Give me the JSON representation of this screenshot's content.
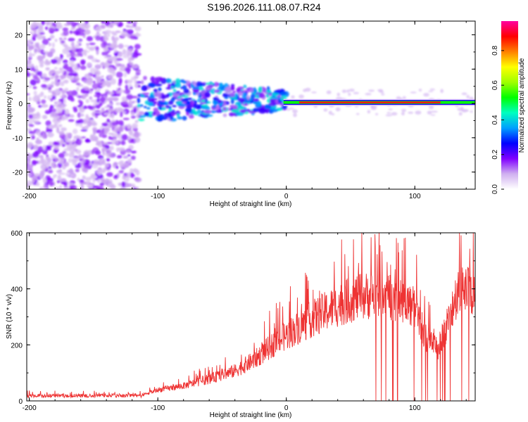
{
  "title": "S196.2026.111.08.07.R24",
  "chart_data": [
    {
      "type": "heatmap",
      "name": "spectrogram",
      "xlabel": "Height of straight line (km)",
      "ylabel": "Frequency (Hz)",
      "xlim": [
        -202,
        147
      ],
      "ylim": [
        -25,
        24
      ],
      "x_ticks": [
        -200,
        -100,
        0,
        100
      ],
      "x_tick_labels": [
        "-200",
        "-100",
        "0",
        "100"
      ],
      "y_ticks": [
        -20,
        -10,
        0,
        10,
        20
      ],
      "y_tick_labels": [
        "-20",
        "-10",
        "0",
        "10",
        "20"
      ],
      "colorbar": {
        "label": "Normalized spectral amplitude",
        "range": [
          0.0,
          0.97
        ],
        "ticks": [
          0.0,
          0.2,
          0.4,
          0.6,
          0.8
        ],
        "tick_labels": [
          "0.0",
          "0.2",
          "0.4",
          "0.6",
          "0.8"
        ],
        "colors": [
          "#ffffff",
          "#d0b0f0",
          "#8000ff",
          "#0000ff",
          "#00a0ff",
          "#00ffc0",
          "#00ff00",
          "#a0ff00",
          "#ffff00",
          "#ff8000",
          "#ff0000",
          "#ff00a0"
        ]
      },
      "regions": [
        {
          "description": "diffuse noise",
          "x_range": [
            -202,
            -115
          ],
          "freq_range": [
            -25,
            24
          ],
          "amplitude": 0.05
        },
        {
          "description": "scattered signal",
          "x_range": [
            -115,
            0
          ],
          "freq_range": [
            -12,
            10
          ],
          "amplitude": 0.25
        },
        {
          "description": "carrier line",
          "x_range": [
            0,
            147
          ],
          "center_freq": 0.3,
          "amplitude": 0.9
        }
      ]
    },
    {
      "type": "line",
      "name": "snr",
      "xlabel": "Height of straight line (km)",
      "ylabel": "SNR (10 * v/v)",
      "xlim": [
        -202,
        147
      ],
      "ylim": [
        0,
        600
      ],
      "x_ticks": [
        -200,
        -100,
        0,
        100
      ],
      "x_tick_labels": [
        "-200",
        "-100",
        "0",
        "100"
      ],
      "y_ticks": [
        0,
        200,
        400,
        600
      ],
      "y_tick_labels": [
        "0",
        "200",
        "400",
        "600"
      ],
      "color": "#ee3333",
      "trend": {
        "x": [
          -202,
          -150,
          -112,
          -100,
          -80,
          -60,
          -40,
          -25,
          -12,
          0,
          20,
          40,
          55,
          70,
          80,
          90,
          100,
          110,
          118,
          125,
          135,
          147
        ],
        "y": [
          18,
          18,
          20,
          40,
          55,
          80,
          110,
          150,
          200,
          240,
          300,
          350,
          380,
          390,
          380,
          370,
          340,
          220,
          190,
          280,
          400,
          410
        ]
      },
      "dropouts_x_range": [
        68,
        147
      ]
    }
  ]
}
